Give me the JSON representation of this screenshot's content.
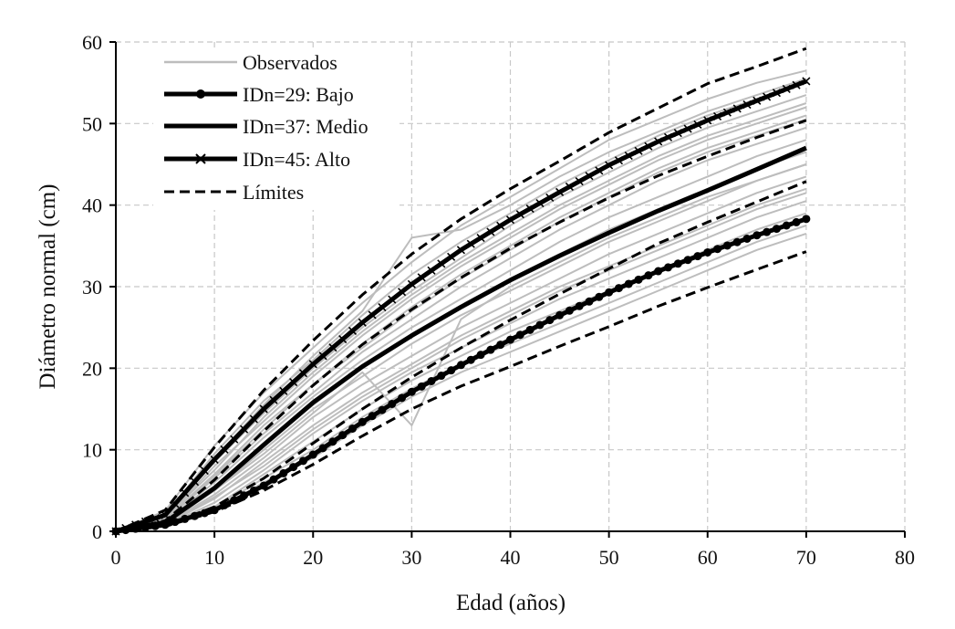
{
  "chart_data": {
    "type": "line",
    "xlabel": "Edad (años)",
    "ylabel": "Diámetro normal (cm)",
    "xlim": [
      0,
      80
    ],
    "ylim": [
      0,
      60
    ],
    "x_ticks": [
      0,
      10,
      20,
      30,
      40,
      50,
      60,
      70,
      80
    ],
    "y_ticks": [
      0,
      10,
      20,
      30,
      40,
      50,
      60
    ],
    "grid": true,
    "legend_position": "top-left",
    "legend": [
      {
        "key": "observed",
        "label": "Observados"
      },
      {
        "key": "bajo",
        "label": "IDn=29: Bajo"
      },
      {
        "key": "medio",
        "label": "IDn=37: Medio"
      },
      {
        "key": "alto",
        "label": "IDn=45: Alto"
      },
      {
        "key": "limits",
        "label": "Límites"
      }
    ],
    "x": [
      0,
      5,
      10,
      15,
      20,
      25,
      30,
      35,
      40,
      45,
      50,
      55,
      60,
      65,
      70
    ],
    "series": [
      {
        "name": "IDn=29: Bajo",
        "key": "bajo",
        "style": "solid-circle",
        "values": [
          0,
          0.8,
          2.6,
          5.6,
          9.4,
          13.4,
          17.1,
          20.4,
          23.5,
          26.5,
          29.3,
          31.9,
          34.2,
          36.3,
          38.3
        ]
      },
      {
        "name": "IDn=37: Medio",
        "key": "medio",
        "style": "solid",
        "values": [
          0,
          1.1,
          5.3,
          10.6,
          15.8,
          20.2,
          24.0,
          27.5,
          30.8,
          33.8,
          36.6,
          39.3,
          41.8,
          44.4,
          47.0
        ]
      },
      {
        "name": "IDn=45: Alto",
        "key": "alto",
        "style": "solid-x",
        "values": [
          0,
          2.0,
          8.8,
          15.0,
          20.5,
          25.6,
          30.3,
          34.5,
          38.2,
          41.6,
          44.9,
          47.8,
          50.4,
          52.8,
          55.2
        ]
      },
      {
        "name": "Límites",
        "key": "limits",
        "style": "dashed",
        "values": [
          0,
          0.6,
          2.4,
          5.0,
          8.2,
          11.7,
          15.0,
          17.8,
          20.2,
          22.7,
          25.1,
          27.6,
          29.9,
          32.1,
          34.3
        ]
      },
      {
        "name": "Límites",
        "key": "limits",
        "style": "dashed",
        "values": [
          0,
          0.7,
          3.0,
          6.5,
          10.8,
          15.0,
          18.9,
          22.5,
          25.9,
          29.1,
          32.2,
          35.3,
          37.9,
          40.4,
          42.9
        ]
      },
      {
        "name": "Límites",
        "key": "limits",
        "style": "dashed",
        "values": [
          0,
          1.3,
          6.3,
          12.3,
          17.9,
          22.9,
          27.2,
          31.1,
          34.7,
          37.9,
          40.9,
          43.6,
          46.0,
          48.3,
          50.4
        ]
      },
      {
        "name": "Límites",
        "key": "limits",
        "style": "dashed",
        "values": [
          0,
          2.6,
          10.3,
          17.3,
          23.4,
          29.0,
          34.0,
          38.3,
          42.0,
          45.4,
          48.9,
          51.9,
          54.9,
          57.0,
          59.2
        ]
      }
    ],
    "observed_series": [
      [
        0,
        2.5,
        10.5,
        17.0,
        22.5,
        28.0,
        33.0,
        37.5,
        41.0,
        44.5,
        48.0,
        50.5,
        53.0,
        55.0,
        56.5
      ],
      [
        0,
        2.0,
        9.5,
        16.0,
        21.0,
        26.5,
        31.5,
        35.5,
        39.0,
        42.5,
        45.5,
        48.5,
        51.0,
        53.0,
        55.0
      ],
      [
        0,
        1.8,
        8.5,
        14.5,
        20.0,
        25.0,
        29.5,
        33.5,
        37.5,
        41.0,
        44.0,
        47.0,
        49.5,
        51.5,
        53.5
      ],
      [
        0,
        1.6,
        8.0,
        13.5,
        19.0,
        24.0,
        28.5,
        32.5,
        36.0,
        39.5,
        42.5,
        45.5,
        48.0,
        50.0,
        52.0
      ],
      [
        0,
        1.5,
        7.0,
        13.0,
        18.0,
        23.0,
        27.5,
        31.5,
        35.0,
        38.5,
        41.5,
        44.5,
        47.0,
        49.0,
        51.0
      ],
      [
        0,
        1.4,
        6.5,
        12.0,
        17.0,
        22.0,
        26.0,
        30.0,
        33.5,
        37.0,
        40.0,
        43.0,
        45.5,
        47.5,
        49.5
      ],
      [
        0,
        1.2,
        6.0,
        11.5,
        16.5,
        21.0,
        25.0,
        28.5,
        32.0,
        35.5,
        38.5,
        41.0,
        43.5,
        46.0,
        48.0
      ],
      [
        0,
        1.1,
        5.5,
        10.5,
        15.5,
        20.0,
        24.0,
        27.5,
        31.0,
        34.0,
        37.0,
        39.5,
        42.0,
        44.5,
        46.5
      ],
      [
        0,
        1.0,
        5.0,
        10.0,
        15.0,
        19.0,
        23.0,
        26.5,
        29.5,
        32.5,
        35.5,
        38.0,
        40.5,
        43.0,
        45.0
      ],
      [
        0,
        0.9,
        4.5,
        9.0,
        14.0,
        18.0,
        21.5,
        25.0,
        28.0,
        31.0,
        34.0,
        36.5,
        39.0,
        41.5,
        43.5
      ],
      [
        0,
        0.8,
        4.0,
        8.5,
        13.0,
        17.0,
        20.5,
        24.0,
        27.0,
        30.0,
        32.5,
        35.0,
        37.5,
        40.0,
        42.0
      ],
      [
        0,
        0.7,
        3.5,
        7.5,
        12.0,
        16.0,
        19.5,
        22.5,
        25.5,
        28.5,
        31.0,
        33.5,
        36.0,
        38.5,
        40.5
      ],
      [
        0,
        0.7,
        3.0,
        7.0,
        11.0,
        15.0,
        18.5,
        21.5,
        24.5,
        27.0,
        29.5,
        32.0,
        34.5,
        37.0,
        39.0
      ],
      [
        0,
        0.6,
        2.8,
        6.5,
        10.0,
        14.0,
        17.5,
        20.5,
        23.0,
        25.5,
        28.0,
        30.5,
        33.0,
        35.5,
        37.5
      ],
      [
        0,
        1.9,
        9.0,
        15.5,
        21.5,
        27.0,
        36.0,
        37.0,
        40.0,
        43.5,
        46.5,
        49.0,
        51.5,
        53.5,
        55.5
      ],
      [
        0,
        0.9,
        5.0,
        9.5,
        14.5,
        19.5,
        13.0,
        26.0,
        30.0,
        33.0,
        36.0,
        38.5,
        41.0,
        43.0,
        45.0
      ],
      [
        0,
        1.3,
        6.8,
        12.5,
        18.0,
        22.5,
        27.0,
        31.0,
        34.5,
        38.0,
        41.0,
        44.0,
        46.5,
        48.5,
        50.5
      ],
      [
        0,
        0.8,
        4.2,
        8.0,
        12.5,
        16.5,
        20.0,
        23.5,
        26.5,
        29.5,
        32.0,
        34.5,
        37.0,
        39.5,
        41.5
      ],
      [
        0,
        1.7,
        7.5,
        14.0,
        19.5,
        24.5,
        29.0,
        33.0,
        36.5,
        40.0,
        43.0,
        46.0,
        48.5,
        50.5,
        52.5
      ],
      [
        0,
        0.6,
        2.5,
        6.0,
        9.0,
        13.0,
        16.5,
        19.5,
        22.0,
        24.5,
        27.0,
        29.5,
        32.0,
        34.5,
        36.5
      ]
    ]
  }
}
